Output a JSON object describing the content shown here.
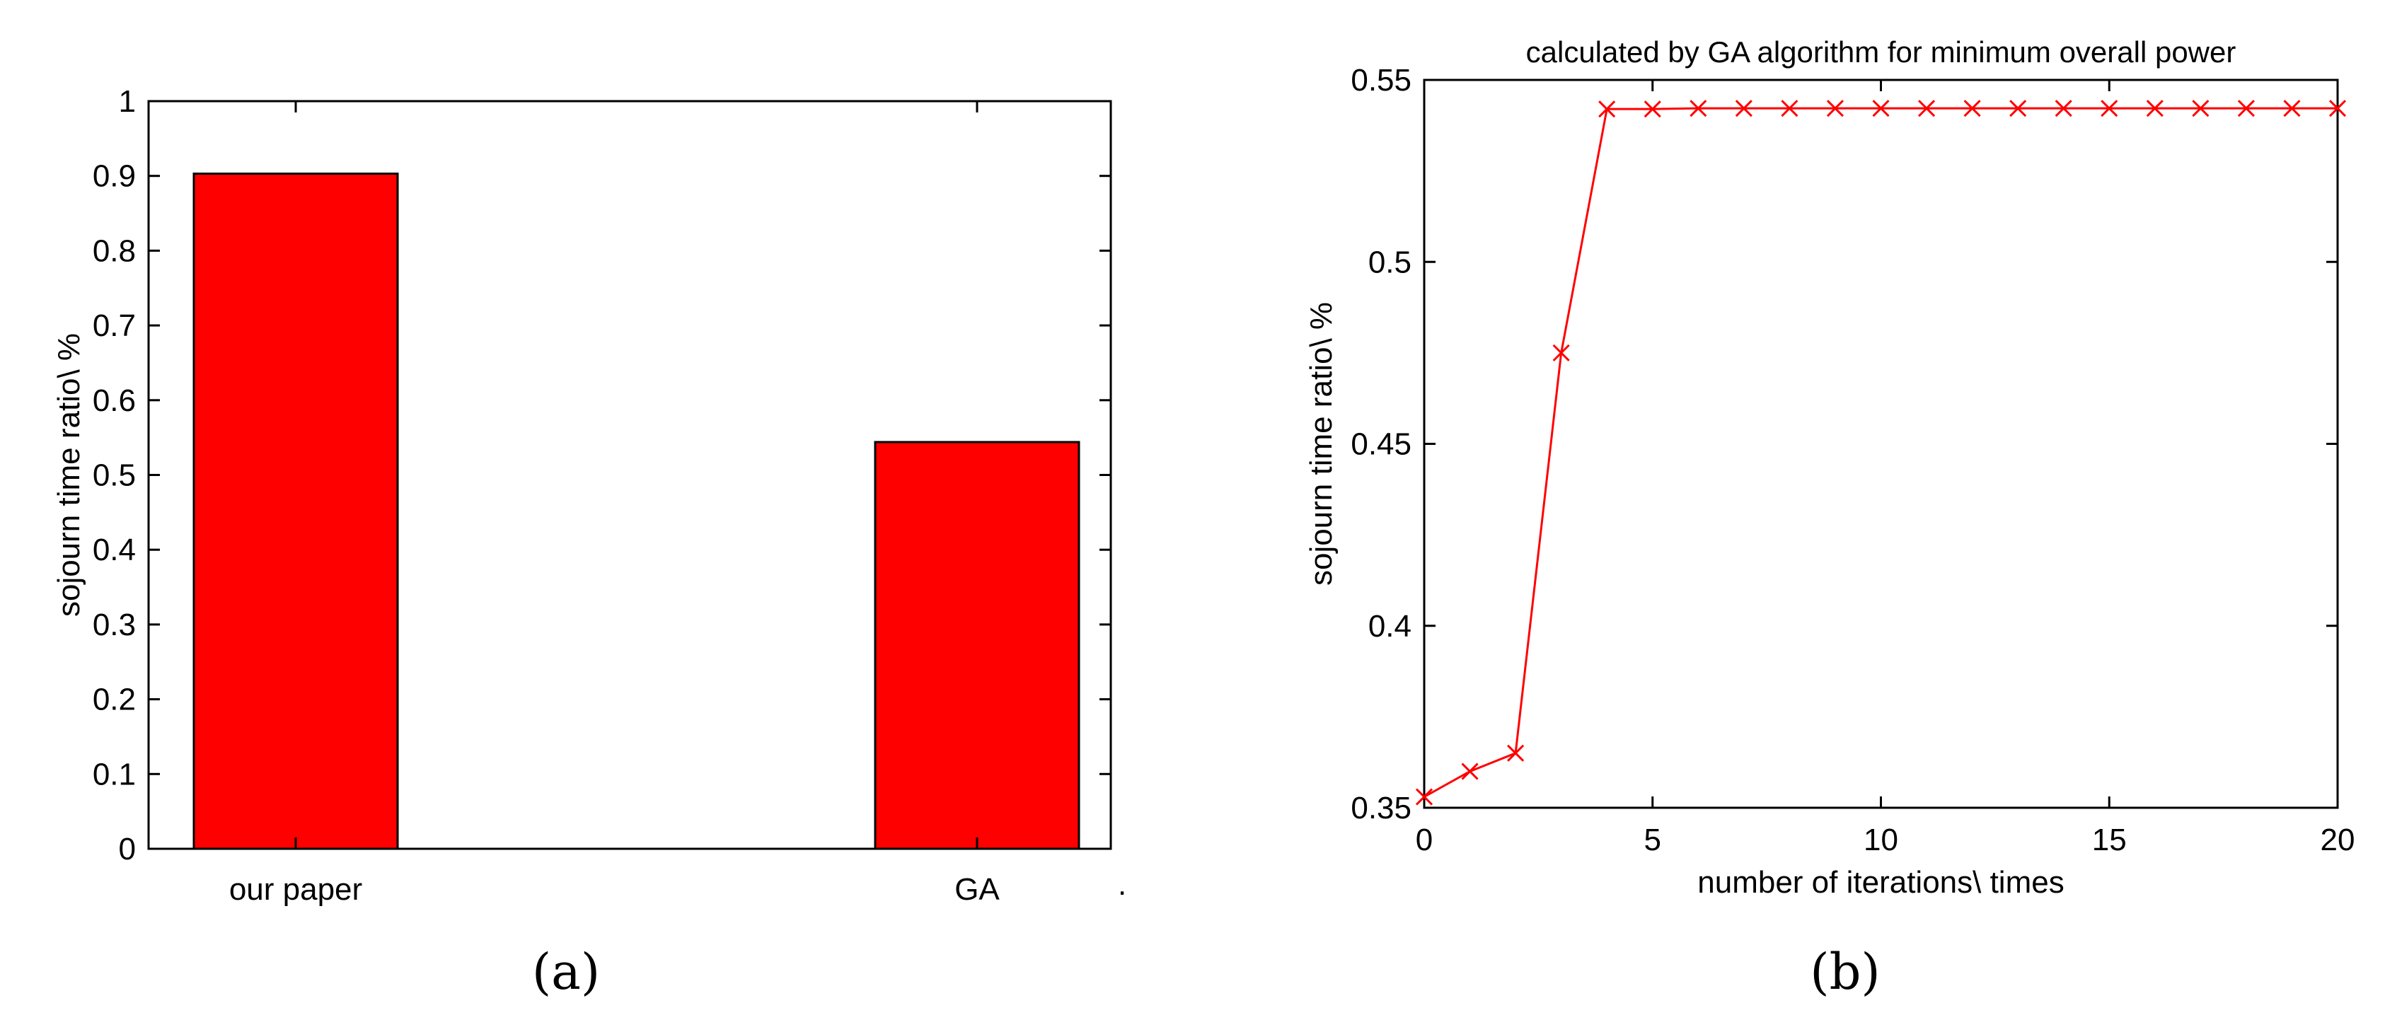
{
  "chart_data": [
    {
      "type": "bar",
      "caption": "(a)",
      "categories": [
        "our paper",
        "GA"
      ],
      "values": [
        0.903,
        0.544
      ],
      "title": "",
      "xlabel": "",
      "ylabel": "sojourn time ratio\\ %",
      "ylim": [
        0,
        1
      ],
      "yticks": [
        "0",
        "0.1",
        "0.2",
        "0.3",
        "0.4",
        "0.5",
        "0.6",
        "0.7",
        "0.8",
        "0.9",
        "1"
      ],
      "bar_color": "#ff0000",
      "grid": false,
      "footnote_mark": "."
    },
    {
      "type": "line",
      "caption": "(b)",
      "title": "calculated by GA algorithm for minimum overall power",
      "xlabel": "number of iterations\\ times",
      "ylabel": "sojourn time ratio\\ %",
      "xlim": [
        0,
        20
      ],
      "ylim": [
        0.35,
        0.55
      ],
      "xticks": [
        "0",
        "5",
        "10",
        "15",
        "20"
      ],
      "yticks": [
        "0.35",
        "0.4",
        "0.45",
        "0.5",
        "0.55"
      ],
      "x": [
        0,
        1,
        2,
        3,
        4,
        5,
        6,
        7,
        8,
        9,
        10,
        11,
        12,
        13,
        14,
        15,
        16,
        17,
        18,
        19,
        20
      ],
      "values": [
        0.353,
        0.36,
        0.365,
        0.475,
        0.542,
        0.542,
        0.5422,
        0.5422,
        0.5422,
        0.5422,
        0.5422,
        0.5422,
        0.5422,
        0.5422,
        0.5422,
        0.5422,
        0.5422,
        0.5422,
        0.5422,
        0.5422,
        0.5422
      ],
      "marker": "x",
      "line_color": "#ff0000",
      "grid": false
    }
  ]
}
